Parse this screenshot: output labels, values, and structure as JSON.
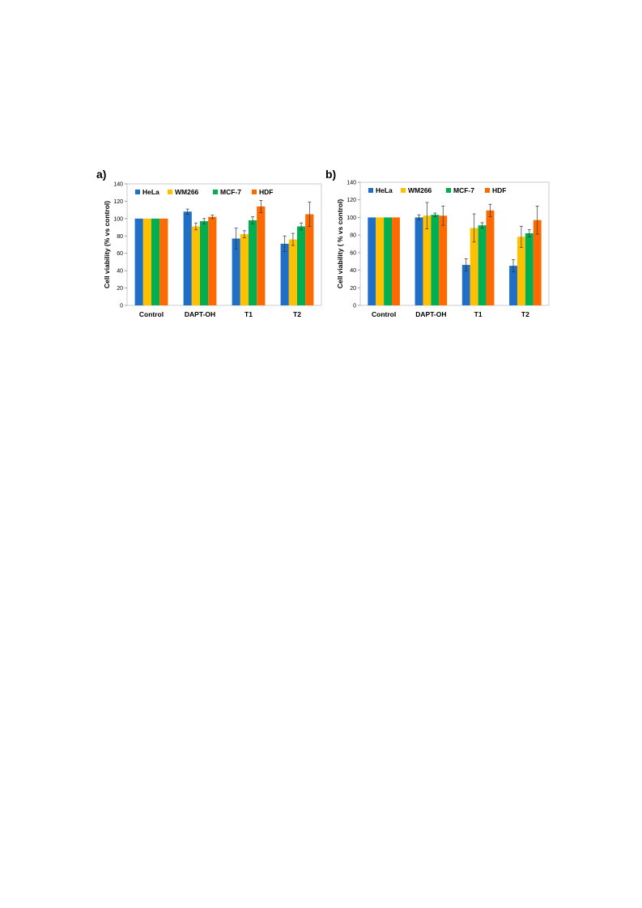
{
  "series_colors": {
    "HeLa": "#1F6FC6",
    "WM266": "#FFC000",
    "MCF-7": "#00B050",
    "HDF": "#FF6A00"
  },
  "chart_data": [
    {
      "panel_label": "a)",
      "type": "bar",
      "ylabel": "Cell viability (% vs control)",
      "xlabel": "",
      "ylim": [
        0,
        140
      ],
      "yticks": [
        0,
        20,
        40,
        60,
        80,
        100,
        120,
        140
      ],
      "grid": false,
      "legend": "top-left",
      "categories": [
        "Control",
        "DAPT-OH",
        "T1",
        "T2"
      ],
      "series": [
        {
          "name": "HeLa",
          "values": [
            100,
            108,
            77,
            71
          ],
          "errors": [
            0,
            3,
            12,
            9
          ]
        },
        {
          "name": "WM266",
          "values": [
            100,
            91,
            82,
            76
          ],
          "errors": [
            0,
            4,
            4,
            7
          ]
        },
        {
          "name": "MCF-7",
          "values": [
            100,
            97,
            98,
            91
          ],
          "errors": [
            0,
            3,
            4,
            4
          ]
        },
        {
          "name": "HDF",
          "values": [
            100,
            102,
            114,
            105
          ],
          "errors": [
            0,
            2,
            7,
            14
          ]
        }
      ]
    },
    {
      "panel_label": "b)",
      "type": "bar",
      "ylabel": "Cell viability  ( % vs control)",
      "xlabel": "",
      "ylim": [
        0,
        140
      ],
      "yticks": [
        0,
        20,
        40,
        60,
        80,
        100,
        120,
        140
      ],
      "grid": false,
      "legend": "top-left",
      "categories": [
        "Control",
        "DAPT-OH",
        "T1",
        "T2"
      ],
      "series": [
        {
          "name": "HeLa",
          "values": [
            100,
            100,
            46,
            45
          ],
          "errors": [
            0,
            3,
            7,
            7
          ]
        },
        {
          "name": "WM266",
          "values": [
            100,
            102,
            88,
            78
          ],
          "errors": [
            0,
            15,
            16,
            12
          ]
        },
        {
          "name": "MCF-7",
          "values": [
            100,
            103,
            91,
            82
          ],
          "errors": [
            0,
            2,
            3,
            4
          ]
        },
        {
          "name": "HDF",
          "values": [
            100,
            102,
            108,
            97
          ],
          "errors": [
            0,
            11,
            7,
            16
          ]
        }
      ]
    }
  ]
}
